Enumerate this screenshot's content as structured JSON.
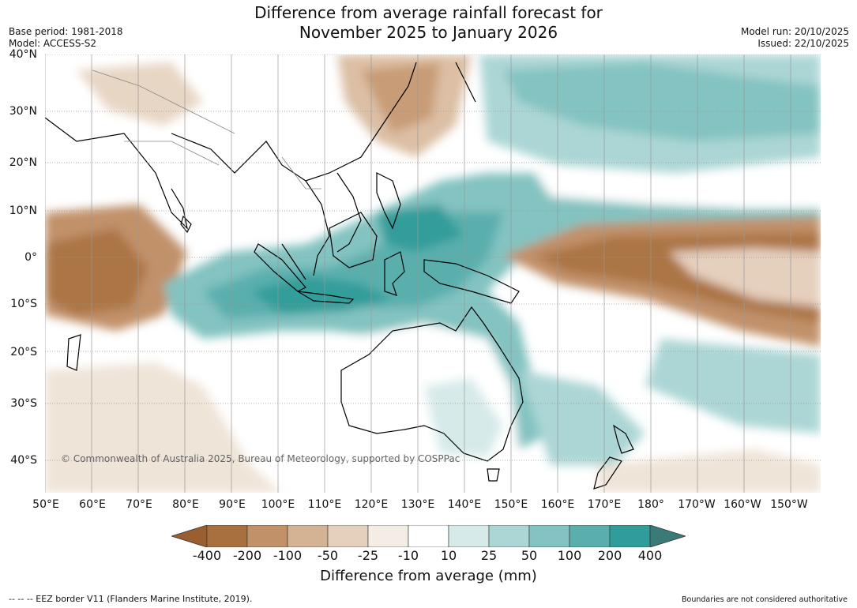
{
  "header": {
    "title_line1": "Difference from average rainfall forecast for",
    "title_line2": "November 2025 to January 2026",
    "base_period": "Base period: 1981-2018",
    "model": "Model: ACCESS-S2",
    "model_run": "Model run: 20/10/2025",
    "issued": "Issued: 22/10/2025"
  },
  "map": {
    "lat_labels": [
      "40°N",
      "30°N",
      "20°N",
      "10°N",
      "0°",
      "10°S",
      "20°S",
      "30°S",
      "40°S"
    ],
    "lon_labels": [
      "50°E",
      "60°E",
      "70°E",
      "80°E",
      "90°E",
      "100°E",
      "110°E",
      "120°E",
      "130°E",
      "140°E",
      "150°E",
      "160°E",
      "170°E",
      "180°",
      "170°W",
      "160°W",
      "150°W"
    ],
    "copyright": "© Commonwealth of Australia 2025, Bureau of Meteorology, supported by COSPPac"
  },
  "legend": {
    "ticks": [
      "-400",
      "-200",
      "-100",
      "-50",
      "-25",
      "-10",
      "10",
      "25",
      "50",
      "100",
      "200",
      "400"
    ],
    "colors": [
      "#a8703e",
      "#c1916a",
      "#d3b394",
      "#e5cfbd",
      "#f3ede6",
      "#ffffff",
      "#d5eae9",
      "#acd6d5",
      "#83c3c1",
      "#5aafad",
      "#309d9a"
    ],
    "end_low_color": "#9a5f30",
    "end_high_color": "#3a7b79",
    "label": "Difference from average (mm)"
  },
  "footer": {
    "eez_note": "--  --  -- EEZ border V11 (Flanders Marine Institute, 2019).",
    "disclaimer": "Boundaries are not considered authoritative"
  }
}
